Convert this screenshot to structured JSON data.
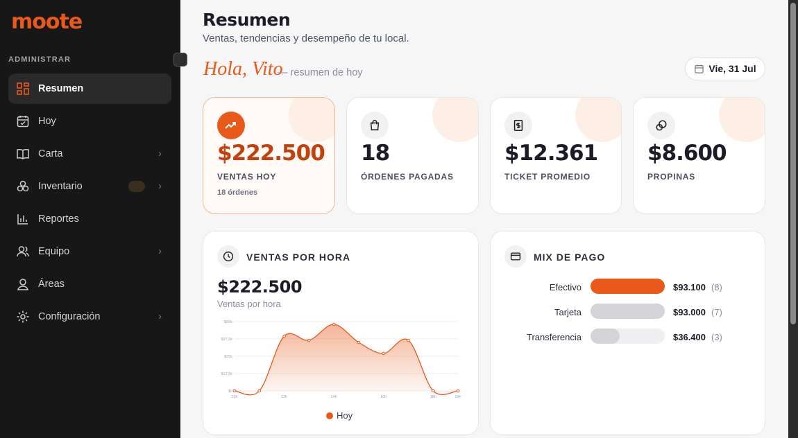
{
  "sidebar": {
    "brand": "moote",
    "section": "ADMINISTRAR",
    "nav": [
      "Resumen",
      "Hoy",
      "Carta",
      "Inventario",
      "Reportes",
      "Equipo",
      "Áreas",
      "Configuración"
    ]
  },
  "header": {
    "title": "Resumen",
    "subtitle": "Ventas, tendencias y desempeño de tu local.",
    "greeting": "Hola, Vito",
    "greeting_note": "— resumen de hoy",
    "date": "Vie, 31 Jul"
  },
  "kpis": [
    {
      "value": "$222.500",
      "label": "VENTAS HOY",
      "note": "18 órdenes"
    },
    {
      "value": "18",
      "label": "ÓRDENES PAGADAS"
    },
    {
      "value": "$12.361",
      "label": "TICKET PROMEDIO"
    },
    {
      "value": "$8.600",
      "label": "PROPINAS"
    }
  ],
  "sales_card": {
    "title": "VENTAS POR HORA",
    "total": "$222.500",
    "caption": "Ventas por hora"
  },
  "chart_data": {
    "type": "area",
    "categories": [
      "10h",
      null,
      "12h",
      null,
      "14h",
      null,
      "16h",
      null,
      "18h",
      "19h"
    ],
    "series": [
      {
        "name": "Hoy",
        "color": "#e8591a",
        "values": [
          0,
          0,
          39500,
          36500,
          48000,
          35000,
          27000,
          36500,
          0,
          0
        ]
      }
    ],
    "ylim": [
      0,
      50000
    ],
    "yticks": [
      {
        "value": 0,
        "label": "$0"
      },
      {
        "value": 12500,
        "label": "$12,5k"
      },
      {
        "value": 25000,
        "label": "$25k"
      },
      {
        "value": 37500,
        "label": "$37,5k"
      },
      {
        "value": 50000,
        "label": "$50k"
      }
    ],
    "grid": true
  },
  "payment_mix": {
    "title": "MIX DE PAGO",
    "labels": [
      "Efectivo",
      "Tarjeta",
      "Transferencia"
    ],
    "values": [
      93100,
      93000,
      36400
    ],
    "value_labels": [
      "$93.100",
      "$93.000",
      "$36.400"
    ],
    "counts": [
      "(8)",
      "(7)",
      "(3)"
    ],
    "colors": [
      "#e8591a",
      "#d4d4d8",
      "#d4d4d8"
    ]
  }
}
